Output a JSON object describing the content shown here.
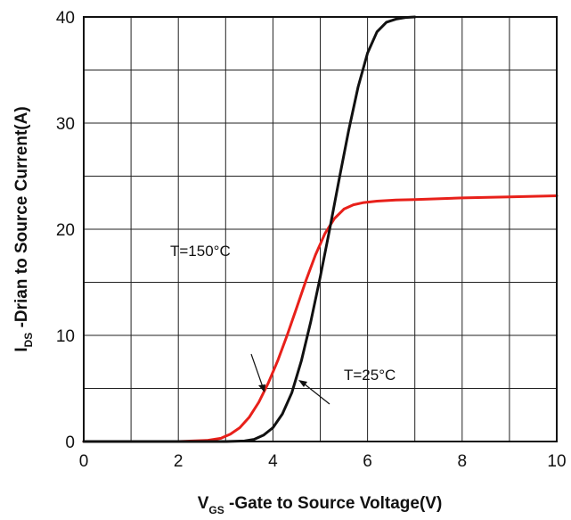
{
  "chart_data": {
    "type": "line",
    "xlabel": {
      "main": "V",
      "sub": "GS",
      "rest": " -Gate to Source Voltage(V)"
    },
    "ylabel": {
      "main": "I",
      "sub": "DS",
      "rest": " -Drian to Source Current(A)"
    },
    "xlim": [
      0,
      10
    ],
    "ylim": [
      0,
      40
    ],
    "xticks": [
      0,
      2,
      4,
      6,
      8,
      10
    ],
    "yticks": [
      0,
      10,
      20,
      30,
      40
    ],
    "grid": true,
    "series": [
      {
        "name": "T=150°C",
        "color": "#e8201a",
        "x": [
          0,
          2.0,
          2.6,
          2.9,
          3.1,
          3.3,
          3.5,
          3.7,
          3.9,
          4.1,
          4.3,
          4.5,
          4.7,
          4.9,
          5.1,
          5.3,
          5.5,
          5.7,
          5.9,
          6.2,
          6.6,
          7.0,
          8.0,
          9.0,
          10.0
        ],
        "y": [
          0,
          0,
          0.1,
          0.3,
          0.7,
          1.3,
          2.3,
          3.7,
          5.5,
          7.6,
          10.0,
          12.6,
          15.2,
          17.6,
          19.6,
          21.0,
          21.9,
          22.3,
          22.5,
          22.65,
          22.75,
          22.8,
          22.95,
          23.05,
          23.15
        ]
      },
      {
        "name": "T=25°C",
        "color": "#111111",
        "x": [
          0,
          3.0,
          3.4,
          3.6,
          3.8,
          4.0,
          4.2,
          4.4,
          4.6,
          4.8,
          5.0,
          5.2,
          5.4,
          5.6,
          5.8,
          6.0,
          6.2,
          6.4,
          6.6,
          6.8,
          7.0
        ],
        "y": [
          0,
          0,
          0.05,
          0.2,
          0.6,
          1.3,
          2.6,
          4.6,
          7.6,
          11.3,
          15.5,
          20.0,
          24.7,
          29.3,
          33.4,
          36.6,
          38.6,
          39.5,
          39.8,
          39.95,
          40.0
        ]
      }
    ],
    "annotations": [
      {
        "text": "T=150°C",
        "series": 0
      },
      {
        "text": "T=25°C",
        "series": 1
      }
    ]
  }
}
